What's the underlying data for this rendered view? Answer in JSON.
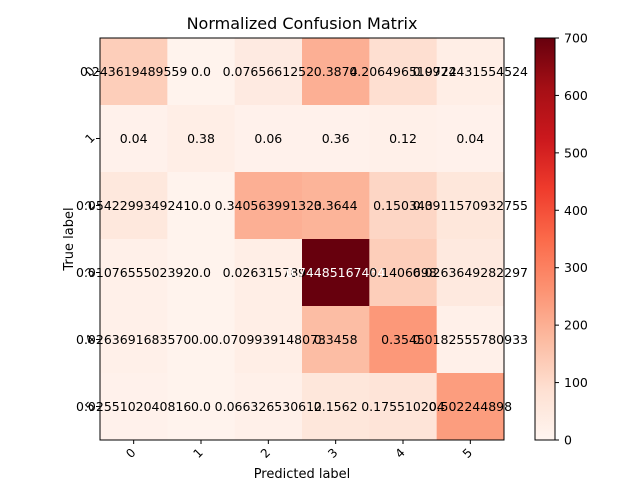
{
  "chart_data": {
    "type": "heatmap",
    "title": "Normalized Confusion Matrix",
    "xlabel": "Predicted label",
    "ylabel": "True label",
    "x_categories": [
      "0",
      "1",
      "2",
      "3",
      "4",
      "5"
    ],
    "y_categories": [
      "0",
      "1",
      "2",
      "3",
      "4",
      "5"
    ],
    "colormap": "Reds",
    "colorbar": {
      "min": 0,
      "max": 700,
      "ticks": [
        0,
        100,
        200,
        300,
        400,
        500,
        600,
        700
      ]
    },
    "values": [
      [
        130,
        10,
        45,
        200,
        90,
        30
      ],
      [
        15,
        30,
        15,
        15,
        20,
        15
      ],
      [
        55,
        10,
        200,
        190,
        110,
        60
      ],
      [
        20,
        10,
        30,
        700,
        130,
        50
      ],
      [
        20,
        10,
        30,
        170,
        250,
        20
      ],
      [
        15,
        10,
        20,
        60,
        70,
        240
      ]
    ],
    "cell_labels": [
      [
        "0.243619489559",
        "0.0",
        "0.0765661252",
        "0.3874",
        "0.206496519722",
        "0.0974431554524"
      ],
      [
        "0.04",
        "0.38",
        "0.06",
        "0.36",
        "0.12",
        "0.04"
      ],
      [
        "0.0542299349241",
        "0.0",
        "0.340563991323",
        "0.3644",
        "0.150343",
        "0.0911570932755"
      ],
      [
        "0.0107655502392",
        "0.0",
        "0.0263157894",
        "0.74485167464",
        "0.1406698",
        "0.0263649282297"
      ],
      [
        "0.0263691683570",
        "0.0",
        "0.0709939148073",
        "0.3458",
        "0.3545",
        "0.0182555780933"
      ],
      [
        "0.0255102040816",
        "0.0",
        "0.066326530612",
        "0.1562",
        "0.175510204",
        "0.502244898"
      ]
    ]
  }
}
